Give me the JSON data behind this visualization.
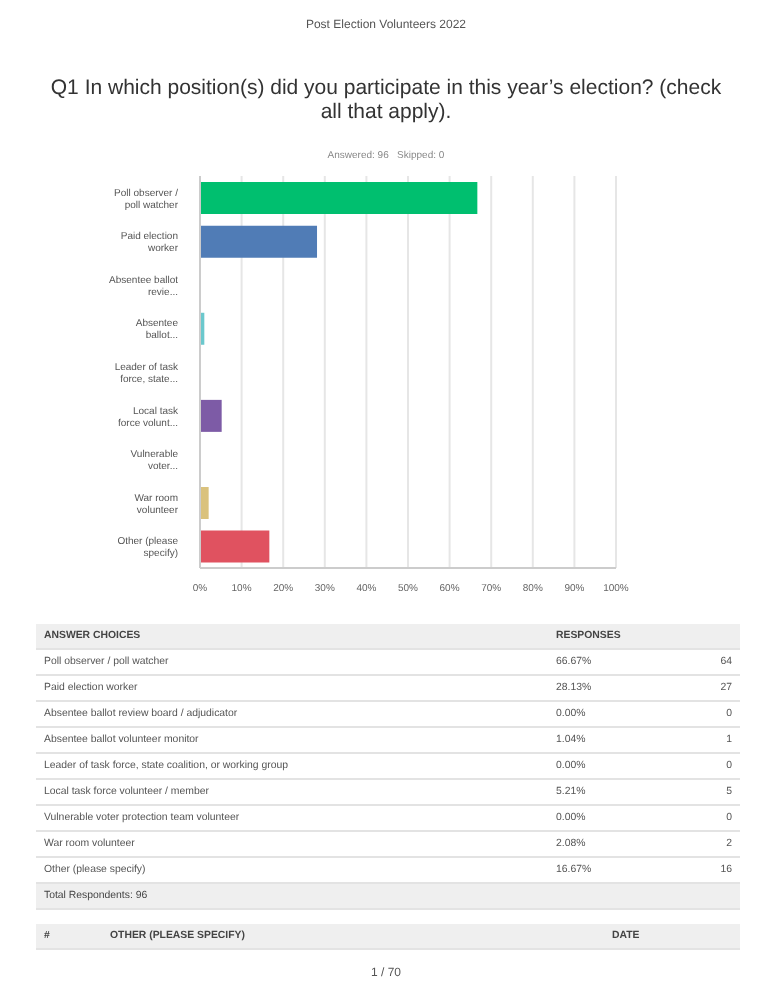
{
  "chart_data": {
    "type": "bar",
    "orientation": "horizontal",
    "subtitle": "Post Election Volunteers 2022",
    "title": "Q1 In which position(s) did you participate in this year’s election? (check all that apply).",
    "categories": [
      "Poll observer / poll watcher",
      "Paid election worker",
      "Absentee ballot revie...",
      "Absentee ballot...",
      "Leader of task force, state...",
      "Local task force volunt...",
      "Vulnerable voter...",
      "War room volunteer",
      "Other (please specify)"
    ],
    "values": [
      66.67,
      28.13,
      0,
      1.04,
      0,
      5.21,
      0,
      2.08,
      16.67
    ],
    "colors": [
      "#00bf6f",
      "#507cb6",
      "#f9be00",
      "#6bc8cd",
      "#ff8b4f",
      "#7d5ba6",
      "#ff5a5a",
      "#dac27d",
      "#e05260"
    ],
    "xlim": [
      0,
      100
    ],
    "xticks": [
      {
        "value": 0,
        "label": "0%"
      },
      {
        "value": 10,
        "label": "10%"
      },
      {
        "value": 20,
        "label": "20%"
      },
      {
        "value": 30,
        "label": "30%"
      },
      {
        "value": 40,
        "label": "40%"
      },
      {
        "value": 50,
        "label": "50%"
      },
      {
        "value": 60,
        "label": "60%"
      },
      {
        "value": 70,
        "label": "70%"
      },
      {
        "value": 80,
        "label": "80%"
      },
      {
        "value": 90,
        "label": "90%"
      },
      {
        "value": 100,
        "label": "100%"
      }
    ],
    "grid": "x",
    "annotations": [
      "Answered: 96",
      "Skipped: 0",
      "ANSWER CHOICES",
      "RESPONSES",
      "Poll observer / poll watcher",
      "Paid election worker",
      "Absentee ballot review board / adjudicator",
      "Absentee ballot volunteer monitor",
      "Leader of task force, state coalition, or working group",
      "Local task force volunteer / member",
      "Vulnerable voter protection team volunteer",
      "War room volunteer",
      "Other (please specify)",
      "64",
      "27",
      "0",
      "1",
      "0",
      "5",
      "0",
      "2",
      "16",
      "Total Respondents: 96",
      "#",
      "OTHER (PLEASE SPECIFY)",
      "DATE",
      "1 / 70",
      "66.67%",
      "28.13%",
      "0.00%",
      "1.04%",
      "0.00%",
      "5.21%",
      "0.00%",
      "2.08%",
      "16.67%"
    ]
  }
}
